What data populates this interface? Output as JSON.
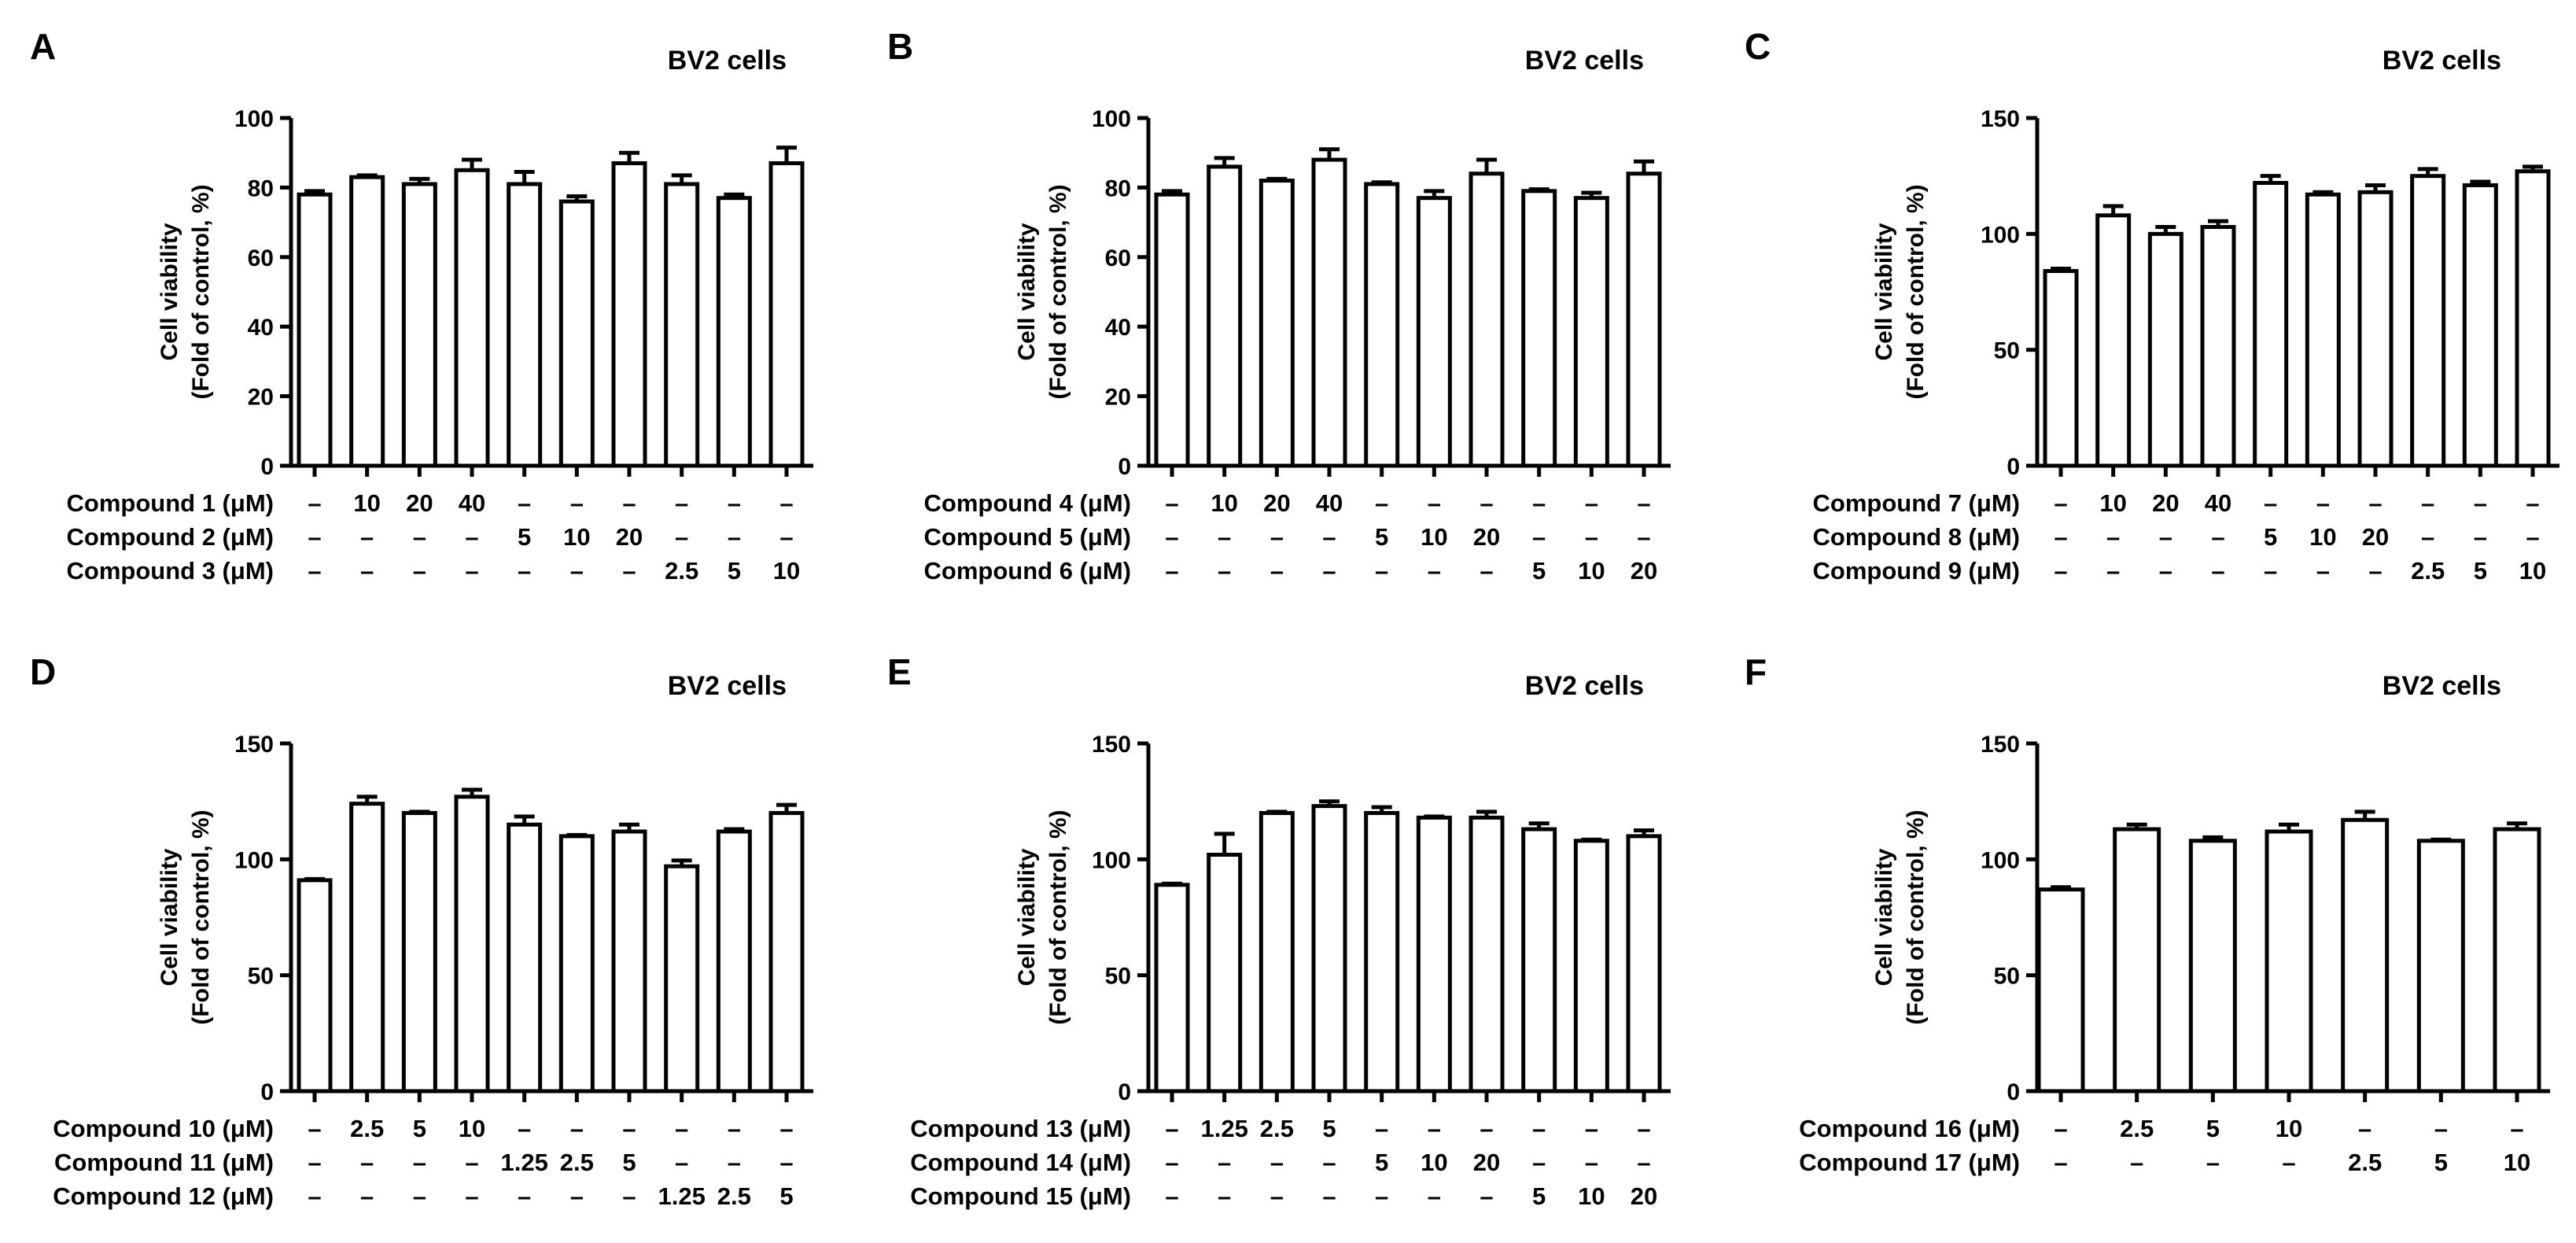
{
  "chart_data": [
    {
      "panel_letter": "A",
      "type": "bar",
      "title": "BV2 cells",
      "ylabel_lines": [
        "Cell viability",
        "(Fold of control, %)"
      ],
      "ylim": [
        0,
        100
      ],
      "yticks": [
        0,
        20,
        40,
        60,
        80,
        100
      ],
      "grid": false,
      "values": [
        78,
        83,
        81,
        85,
        81,
        76,
        87,
        81,
        77,
        87
      ],
      "errors": [
        1,
        0.5,
        1.5,
        3,
        3.5,
        1.5,
        3,
        2.5,
        1,
        4.5
      ],
      "treatment_rows": [
        {
          "label": "Compound 1 (μM)",
          "cells": [
            "–",
            "10",
            "20",
            "40",
            "–",
            "–",
            "–",
            "–",
            "–",
            "–"
          ]
        },
        {
          "label": "Compound 2 (μM)",
          "cells": [
            "–",
            "–",
            "–",
            "–",
            "5",
            "10",
            "20",
            "–",
            "–",
            "–"
          ]
        },
        {
          "label": "Compound 3 (μM)",
          "cells": [
            "–",
            "–",
            "–",
            "–",
            "–",
            "–",
            "–",
            "2.5",
            "5",
            "10"
          ]
        }
      ]
    },
    {
      "panel_letter": "B",
      "type": "bar",
      "title": "BV2 cells",
      "ylabel_lines": [
        "Cell viability",
        "(Fold of control, %)"
      ],
      "ylim": [
        0,
        100
      ],
      "yticks": [
        0,
        20,
        40,
        60,
        80,
        100
      ],
      "grid": false,
      "values": [
        78,
        86,
        82,
        88,
        81,
        77,
        84,
        79,
        77,
        84
      ],
      "errors": [
        1,
        2.5,
        0.5,
        3,
        0.5,
        2,
        4,
        0.5,
        1.5,
        3.5
      ],
      "treatment_rows": [
        {
          "label": "Compound 4 (μM)",
          "cells": [
            "–",
            "10",
            "20",
            "40",
            "–",
            "–",
            "–",
            "–",
            "–",
            "–"
          ]
        },
        {
          "label": "Compound 5 (μM)",
          "cells": [
            "–",
            "–",
            "–",
            "–",
            "5",
            "10",
            "20",
            "–",
            "–",
            "–"
          ]
        },
        {
          "label": "Compound 6 (μM)",
          "cells": [
            "–",
            "–",
            "–",
            "–",
            "–",
            "–",
            "–",
            "5",
            "10",
            "20"
          ]
        }
      ]
    },
    {
      "panel_letter": "C",
      "type": "bar",
      "title": "BV2 cells",
      "ylabel_lines": [
        "Cell viability",
        "(Fold of control, %)"
      ],
      "ylim": [
        0,
        150
      ],
      "yticks": [
        0,
        50,
        100,
        150
      ],
      "grid": false,
      "values": [
        84,
        108,
        100,
        103,
        122,
        117,
        118,
        125,
        121,
        127
      ],
      "errors": [
        1,
        4,
        3,
        2.5,
        3,
        1,
        3,
        3,
        1.5,
        2
      ],
      "treatment_rows": [
        {
          "label": "Compound 7 (μM)",
          "cells": [
            "–",
            "10",
            "20",
            "40",
            "–",
            "–",
            "–",
            "–",
            "–",
            "–"
          ]
        },
        {
          "label": "Compound 8 (μM)",
          "cells": [
            "–",
            "–",
            "–",
            "–",
            "5",
            "10",
            "20",
            "–",
            "–",
            "–"
          ]
        },
        {
          "label": "Compound 9 (μM)",
          "cells": [
            "–",
            "–",
            "–",
            "–",
            "–",
            "–",
            "–",
            "2.5",
            "5",
            "10"
          ]
        }
      ]
    },
    {
      "panel_letter": "D",
      "type": "bar",
      "title": "BV2 cells",
      "ylabel_lines": [
        "Cell viability",
        "(Fold of control, %)"
      ],
      "ylim": [
        0,
        150
      ],
      "yticks": [
        0,
        50,
        100,
        150
      ],
      "grid": false,
      "values": [
        91,
        124,
        120,
        127,
        115,
        110,
        112,
        97,
        112,
        120
      ],
      "errors": [
        0.5,
        3,
        0.5,
        3,
        3.5,
        0.5,
        3,
        2.5,
        1,
        3.5
      ],
      "treatment_rows": [
        {
          "label": "Compound 10 (μM)",
          "cells": [
            "–",
            "2.5",
            "5",
            "10",
            "–",
            "–",
            "–",
            "–",
            "–",
            "–"
          ]
        },
        {
          "label": "Compound 11 (μM)",
          "cells": [
            "–",
            "–",
            "–",
            "–",
            "1.25",
            "2.5",
            "5",
            "–",
            "–",
            "–"
          ]
        },
        {
          "label": "Compound 12 (μM)",
          "cells": [
            "–",
            "–",
            "–",
            "–",
            "–",
            "–",
            "–",
            "1.25",
            "2.5",
            "5"
          ]
        }
      ]
    },
    {
      "panel_letter": "E",
      "type": "bar",
      "title": "BV2 cells",
      "ylabel_lines": [
        "Cell viability",
        "(Fold of control, %)"
      ],
      "ylim": [
        0,
        150
      ],
      "yticks": [
        0,
        50,
        100,
        150
      ],
      "grid": false,
      "values": [
        89,
        102,
        120,
        123,
        120,
        118,
        118,
        113,
        108,
        110
      ],
      "errors": [
        0.5,
        9,
        0.5,
        2,
        2.5,
        0.5,
        2.5,
        2.5,
        0.5,
        2.5
      ],
      "treatment_rows": [
        {
          "label": "Compound 13 (μM)",
          "cells": [
            "–",
            "1.25",
            "2.5",
            "5",
            "–",
            "–",
            "–",
            "–",
            "–",
            "–"
          ]
        },
        {
          "label": "Compound 14 (μM)",
          "cells": [
            "–",
            "–",
            "–",
            "–",
            "5",
            "10",
            "20",
            "–",
            "–",
            "–"
          ]
        },
        {
          "label": "Compound 15 (μM)",
          "cells": [
            "–",
            "–",
            "–",
            "–",
            "–",
            "–",
            "–",
            "5",
            "10",
            "20"
          ]
        }
      ]
    },
    {
      "panel_letter": "F",
      "type": "bar",
      "title": "BV2 cells",
      "ylabel_lines": [
        "Cell viability",
        "(Fold of control, %)"
      ],
      "ylim": [
        0,
        150
      ],
      "yticks": [
        0,
        50,
        100,
        150
      ],
      "grid": false,
      "values": [
        87,
        113,
        108,
        112,
        117,
        108,
        113
      ],
      "errors": [
        1,
        2,
        1.5,
        3,
        3.5,
        0.5,
        2.5
      ],
      "treatment_rows": [
        {
          "label": "Compound 16 (μM)",
          "cells": [
            "–",
            "2.5",
            "5",
            "10",
            "–",
            "–",
            "–"
          ]
        },
        {
          "label": "Compound 17 (μM)",
          "cells": [
            "–",
            "–",
            "–",
            "–",
            "2.5",
            "5",
            "10"
          ]
        }
      ]
    }
  ]
}
